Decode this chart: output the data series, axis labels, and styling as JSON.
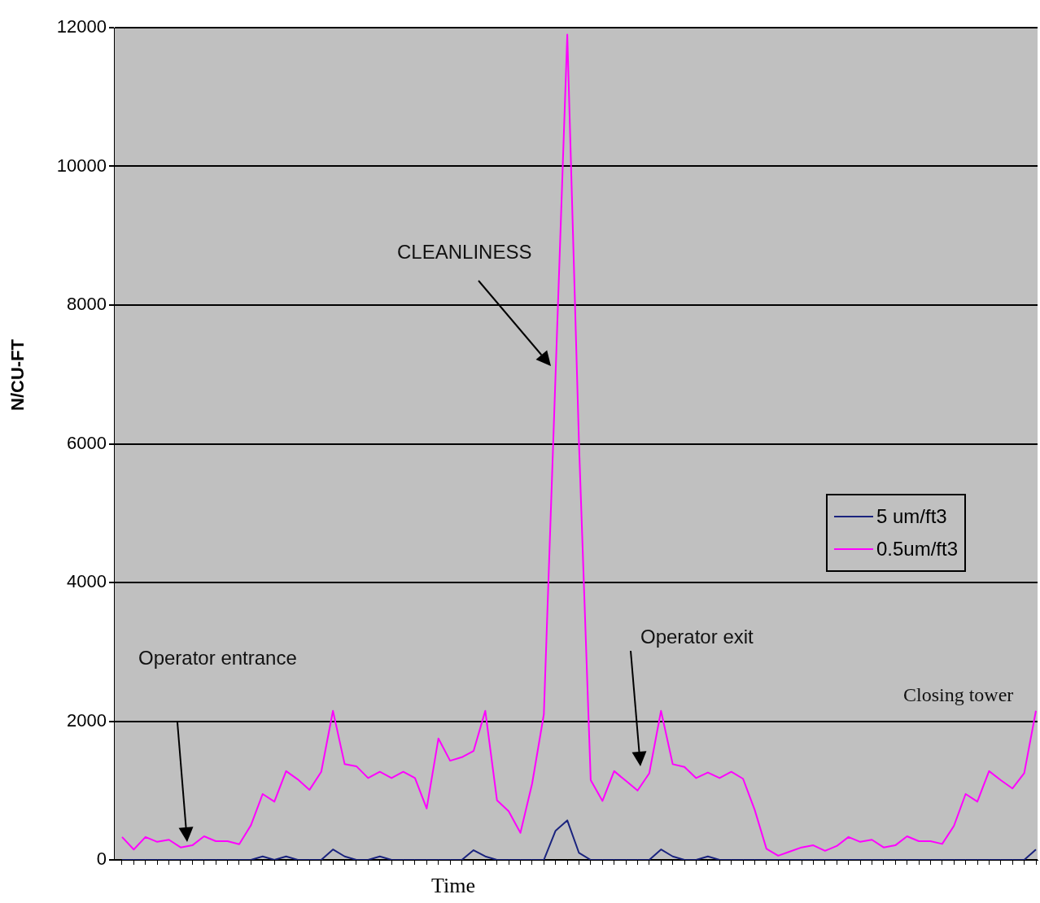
{
  "chart_data": {
    "type": "line",
    "xlabel": "Time",
    "ylabel": "N/CU-FT",
    "categories": [
      null,
      null,
      null,
      null,
      null,
      null,
      null,
      null,
      null,
      null,
      null,
      null,
      null,
      null,
      null,
      null,
      null,
      null,
      null,
      null,
      null,
      null,
      null,
      null,
      null,
      null,
      null,
      null,
      null,
      null,
      null,
      null,
      null,
      null,
      null,
      null,
      null,
      null,
      null,
      null,
      null,
      null,
      null,
      null,
      null,
      null,
      null,
      null,
      null,
      null,
      null,
      null,
      null,
      null,
      null,
      null,
      null,
      null,
      null,
      null,
      null,
      null,
      null,
      null,
      null,
      null,
      null,
      null,
      null,
      null,
      null,
      null,
      null,
      null,
      null,
      null,
      null,
      null,
      null
    ],
    "series": [
      {
        "name": "5 um/ft3",
        "color": "#1a237e",
        "values": [
          0,
          0,
          0,
          0,
          0,
          0,
          0,
          0,
          0,
          0,
          0,
          0,
          50,
          0,
          50,
          0,
          0,
          0,
          150,
          50,
          0,
          0,
          50,
          0,
          0,
          0,
          0,
          0,
          0,
          0,
          140,
          50,
          0,
          0,
          0,
          0,
          0,
          420,
          570,
          100,
          0,
          0,
          0,
          0,
          0,
          0,
          150,
          50,
          0,
          0,
          50,
          0,
          0,
          0,
          0,
          0,
          0,
          0,
          0,
          0,
          0,
          0,
          0,
          0,
          0,
          0,
          0,
          0,
          0,
          0,
          0,
          0,
          0,
          0,
          0,
          0,
          0,
          0,
          150
        ]
      },
      {
        "name": "0.5um/ft3",
        "color": "#ff00ff",
        "values": [
          330,
          150,
          330,
          260,
          290,
          180,
          210,
          340,
          270,
          270,
          225,
          500,
          950,
          840,
          1280,
          1160,
          1010,
          1270,
          2150,
          1380,
          1350,
          1180,
          1270,
          1180,
          1270,
          1180,
          740,
          1750,
          1430,
          1480,
          1570,
          2150,
          860,
          700,
          390,
          1100,
          2100,
          7000,
          11900,
          6000,
          1150,
          850,
          1280,
          1140,
          1000,
          1250,
          2150,
          1380,
          1340,
          1180,
          1260,
          1180,
          1270,
          1170,
          720,
          160,
          60,
          120,
          180,
          210,
          130,
          200,
          330,
          260,
          290,
          180,
          210,
          340,
          270,
          270,
          230,
          490,
          950,
          840,
          1280,
          1150,
          1030,
          1250,
          2150
        ]
      }
    ],
    "ylim": [
      0,
      12000
    ],
    "yticks": [
      0,
      2000,
      4000,
      6000,
      8000,
      10000,
      12000
    ],
    "grid": "y",
    "legend": "right",
    "tick_labels": "y",
    "marker": "none",
    "line_style": "solid",
    "annotations": [
      "CLEANLINESS",
      "Operator entrance",
      "Operator exit",
      "Closing tower"
    ]
  }
}
